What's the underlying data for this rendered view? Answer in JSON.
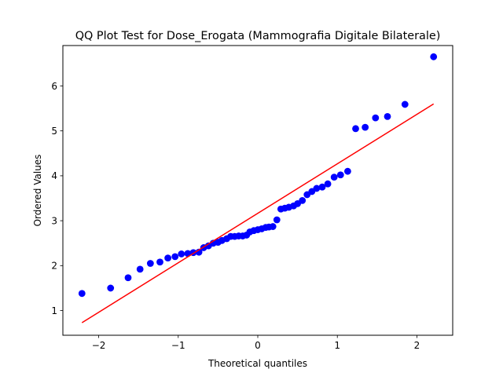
{
  "chart_data": {
    "type": "scatter",
    "title": "QQ Plot Test for Dose_Erogata (Mammografia Digitale Bilaterale)",
    "xlabel": "Theoretical quantiles",
    "ylabel": "Ordered Values",
    "xlim": [
      -2.45,
      2.45
    ],
    "ylim": [
      0.45,
      6.9
    ],
    "xticks": [
      -2,
      -1,
      0,
      1,
      2
    ],
    "yticks": [
      1,
      2,
      3,
      4,
      5,
      6
    ],
    "grid": false,
    "legend": "none",
    "series": [
      {
        "kind": "points",
        "color": "#0000ff",
        "marker": "circle",
        "points": [
          [
            -2.21,
            1.38
          ],
          [
            -1.85,
            1.5
          ],
          [
            -1.63,
            1.73
          ],
          [
            -1.48,
            1.92
          ],
          [
            -1.35,
            2.05
          ],
          [
            -1.23,
            2.08
          ],
          [
            -1.13,
            2.17
          ],
          [
            -1.04,
            2.2
          ],
          [
            -0.96,
            2.26
          ],
          [
            -0.88,
            2.27
          ],
          [
            -0.81,
            2.29
          ],
          [
            -0.74,
            2.3
          ],
          [
            -0.68,
            2.4
          ],
          [
            -0.62,
            2.44
          ],
          [
            -0.56,
            2.5
          ],
          [
            -0.5,
            2.52
          ],
          [
            -0.45,
            2.56
          ],
          [
            -0.39,
            2.6
          ],
          [
            -0.34,
            2.65
          ],
          [
            -0.29,
            2.65
          ],
          [
            -0.24,
            2.66
          ],
          [
            -0.19,
            2.66
          ],
          [
            -0.14,
            2.68
          ],
          [
            -0.1,
            2.75
          ],
          [
            -0.05,
            2.78
          ],
          [
            0.0,
            2.8
          ],
          [
            0.05,
            2.82
          ],
          [
            0.1,
            2.85
          ],
          [
            0.14,
            2.86
          ],
          [
            0.19,
            2.87
          ],
          [
            0.24,
            3.02
          ],
          [
            0.29,
            3.26
          ],
          [
            0.34,
            3.28
          ],
          [
            0.39,
            3.3
          ],
          [
            0.45,
            3.33
          ],
          [
            0.5,
            3.38
          ],
          [
            0.56,
            3.45
          ],
          [
            0.62,
            3.58
          ],
          [
            0.68,
            3.65
          ],
          [
            0.74,
            3.72
          ],
          [
            0.81,
            3.75
          ],
          [
            0.88,
            3.82
          ],
          [
            0.96,
            3.97
          ],
          [
            1.04,
            4.02
          ],
          [
            1.13,
            4.1
          ],
          [
            1.23,
            5.05
          ],
          [
            1.35,
            5.08
          ],
          [
            1.48,
            5.29
          ],
          [
            1.63,
            5.32
          ],
          [
            1.85,
            5.59
          ],
          [
            2.21,
            6.65
          ]
        ]
      },
      {
        "kind": "fit-line",
        "color": "#ff0000",
        "points": [
          [
            -2.21,
            0.73
          ],
          [
            2.21,
            5.6
          ]
        ]
      }
    ]
  }
}
